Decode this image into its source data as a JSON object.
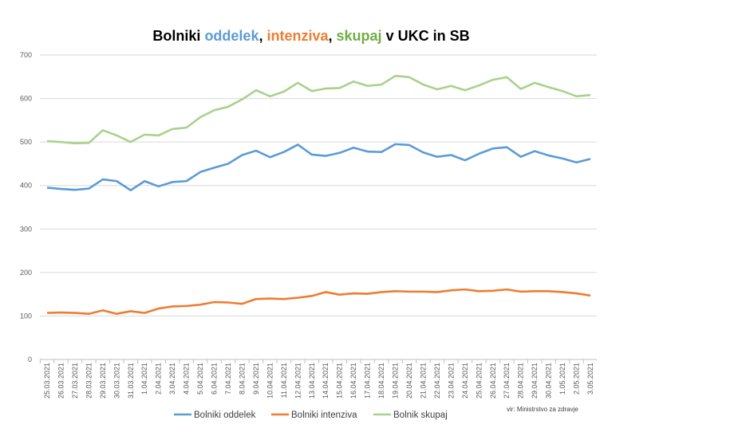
{
  "chart_data": {
    "type": "line",
    "title_parts": [
      "Bolniki ",
      "oddelek",
      ", ",
      "intenziva",
      ", ",
      "skupaj",
      " v UKC in SB"
    ],
    "ylim": [
      0,
      700
    ],
    "yticks": [
      0,
      100,
      200,
      300,
      400,
      500,
      600,
      700
    ],
    "grid": true,
    "legend": "bottom",
    "source": "vir: Ministrstvo za zdravje",
    "categories": [
      "25.03.2021",
      "26.03.2021",
      "27.03.2021",
      "28.03.2021",
      "29.03.2021",
      "30.03.2021",
      "31.03.2021",
      "1.04.2021",
      "2.04.2021",
      "3.04.2021",
      "4.04.2021",
      "5.04.2021",
      "6.04.2021",
      "7.04.2021",
      "8.04.2021",
      "9.04.2021",
      "10.04.2021",
      "11.04.2021",
      "12.04.2021",
      "13.04.2021",
      "14.04.2021",
      "15.04.2021",
      "16.04.2021",
      "17.04.2021",
      "18.04.2021",
      "19.04.2021",
      "20.04.2021",
      "21.04.2021",
      "22.04.2021",
      "23.04.2021",
      "24.04.2021",
      "25.04.2021",
      "26.04.2021",
      "27.04.2021",
      "28.04.2021",
      "29.04.2021",
      "30.04.2021",
      "1.05.2021",
      "2.05.2021",
      "3.05.2021"
    ],
    "series": [
      {
        "name": "Bolniki oddelek",
        "color": "#5b9bd5",
        "values": [
          395,
          392,
          390,
          393,
          414,
          410,
          389,
          410,
          398,
          408,
          410,
          431,
          441,
          450,
          470,
          480,
          465,
          477,
          494,
          471,
          468,
          475,
          487,
          478,
          477,
          495,
          493,
          476,
          466,
          470,
          458,
          473,
          485,
          488,
          466,
          479,
          469,
          462,
          453,
          461
        ]
      },
      {
        "name": "Bolniki intenziva",
        "color": "#ed7d31",
        "values": [
          107,
          108,
          107,
          105,
          113,
          105,
          111,
          107,
          117,
          122,
          123,
          126,
          132,
          131,
          128,
          139,
          140,
          139,
          142,
          146,
          155,
          149,
          152,
          151,
          155,
          157,
          156,
          156,
          155,
          159,
          161,
          157,
          158,
          161,
          156,
          157,
          157,
          155,
          152,
          147
        ]
      },
      {
        "name": "Bolnik skupaj",
        "color": "#a9d18e",
        "values": [
          502,
          500,
          497,
          498,
          527,
          515,
          500,
          517,
          515,
          530,
          533,
          557,
          573,
          581,
          598,
          619,
          605,
          616,
          636,
          617,
          623,
          624,
          639,
          629,
          632,
          652,
          649,
          632,
          621,
          629,
          619,
          630,
          643,
          649,
          622,
          636,
          626,
          617,
          605,
          608
        ]
      }
    ]
  }
}
